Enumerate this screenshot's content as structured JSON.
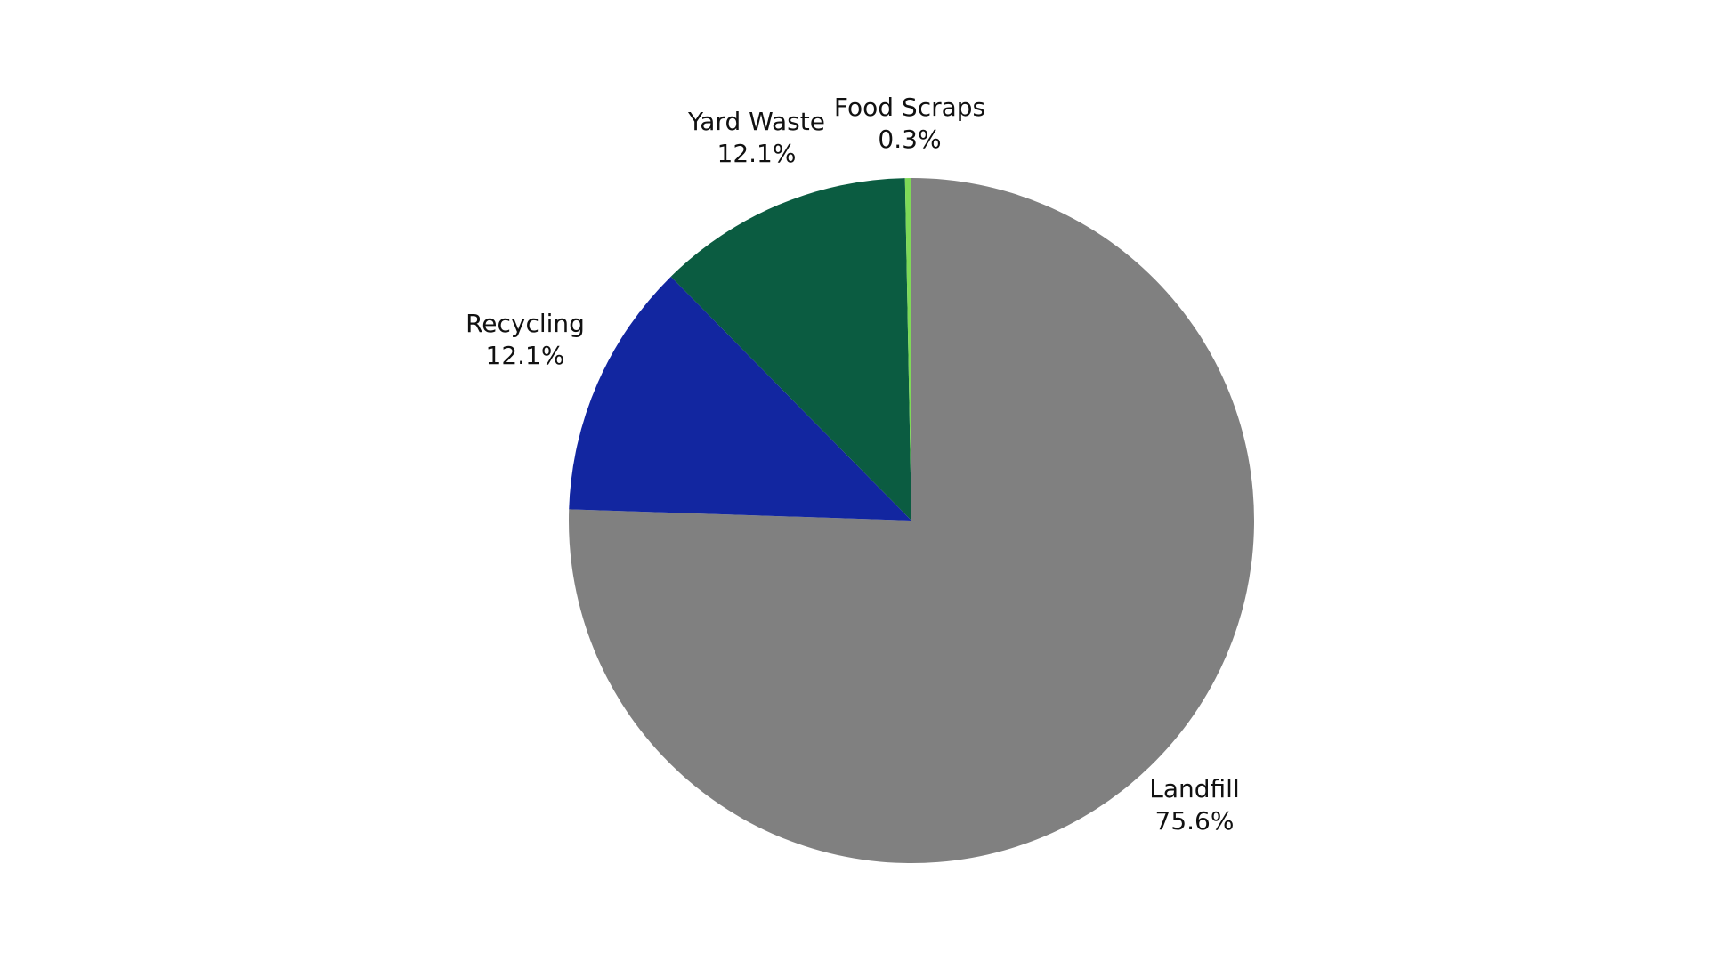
{
  "chart_data": {
    "type": "pie",
    "title": "",
    "slices": [
      {
        "label": "Landfill",
        "value": 75.6,
        "display": "75.6%",
        "color": "#808080"
      },
      {
        "label": "Recycling",
        "value": 12.1,
        "display": "12.1%",
        "color": "#1226A0"
      },
      {
        "label": "Yard Waste",
        "value": 12.1,
        "display": "12.1%",
        "color": "#0B5C41"
      },
      {
        "label": "Food Scraps",
        "value": 0.3,
        "display": "0.3%",
        "color": "#7ED957"
      }
    ],
    "start_angle": "12 o'clock",
    "direction": "clockwise",
    "legend": "none",
    "labels": "outside"
  }
}
